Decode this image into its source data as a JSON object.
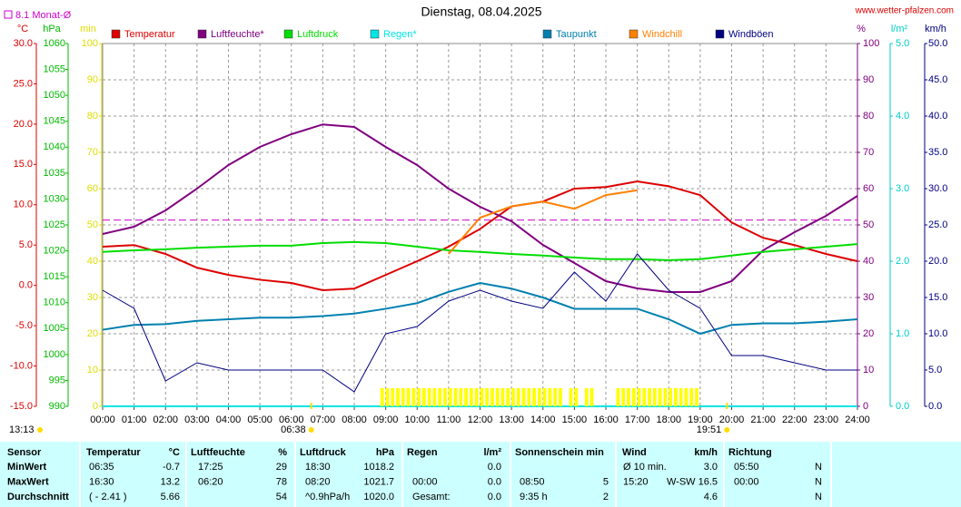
{
  "chart_data": {
    "type": "line",
    "title": "Dienstag, 08.04.2025",
    "site": "www.wetter-pfalzen.com",
    "month_avg": {
      "label": "8.1 Monat-Ø",
      "value": 8.1,
      "axis": "temp",
      "color": "#cc00cc"
    },
    "grid": true,
    "xlim": [
      0,
      24
    ],
    "xticks": [
      {
        "value": 0,
        "label": "00:00"
      },
      {
        "value": 1,
        "label": "01:00"
      },
      {
        "value": 2,
        "label": "02:00"
      },
      {
        "value": 3,
        "label": "03:00"
      },
      {
        "value": 4,
        "label": "04:00"
      },
      {
        "value": 5,
        "label": "05:00"
      },
      {
        "value": 6,
        "label": "06:00"
      },
      {
        "value": 7,
        "label": "07:00"
      },
      {
        "value": 8,
        "label": "08:00"
      },
      {
        "value": 9,
        "label": "09:00"
      },
      {
        "value": 10,
        "label": "10:00"
      },
      {
        "value": 11,
        "label": "11:00"
      },
      {
        "value": 12,
        "label": "12:00"
      },
      {
        "value": 13,
        "label": "13:00"
      },
      {
        "value": 14,
        "label": "14:00"
      },
      {
        "value": 15,
        "label": "15:00"
      },
      {
        "value": 16,
        "label": "16:00"
      },
      {
        "value": 17,
        "label": "17:00"
      },
      {
        "value": 18,
        "label": "18:00"
      },
      {
        "value": 19,
        "label": "19:00"
      },
      {
        "value": 20,
        "label": "20:00"
      },
      {
        "value": 21,
        "label": "21:00"
      },
      {
        "value": 22,
        "label": "22:00"
      },
      {
        "value": 23,
        "label": "23:00"
      },
      {
        "value": 24,
        "label": "24:00"
      }
    ],
    "axes": {
      "temp": {
        "label": "°C",
        "color": "#dd0000",
        "side": "left",
        "pos": 0,
        "lim": [
          -15,
          30
        ],
        "ticks": [
          {
            "value": 30,
            "label": "30.0"
          },
          {
            "value": 25,
            "label": "25.0"
          },
          {
            "value": 20,
            "label": "20.0"
          },
          {
            "value": 15,
            "label": "15.0"
          },
          {
            "value": 10,
            "label": "10.0"
          },
          {
            "value": 5,
            "label": "5.0"
          },
          {
            "value": 0,
            "label": "0.0"
          },
          {
            "value": -5,
            "label": "-5.0"
          },
          {
            "value": -10,
            "label": "-10.0"
          },
          {
            "value": -15,
            "label": "-15.0"
          }
        ]
      },
      "hpa": {
        "label": "hPa",
        "color": "#00bb00",
        "side": "left",
        "pos": 1,
        "lim": [
          990,
          1060
        ],
        "ticks": [
          1060,
          1055,
          1050,
          1045,
          1040,
          1035,
          1030,
          1025,
          1020,
          1015,
          1010,
          1005,
          1000,
          995,
          990
        ]
      },
      "min": {
        "label": "min",
        "color": "#dddd00",
        "side": "left",
        "pos": 2,
        "lim": [
          0,
          100
        ],
        "ticks": [
          100,
          90,
          80,
          70,
          60,
          50,
          40,
          30,
          20,
          10,
          0
        ]
      },
      "pct": {
        "label": "%",
        "color": "#800080",
        "side": "right",
        "pos": 0,
        "lim": [
          0,
          100
        ],
        "ticks": [
          100,
          90,
          80,
          70,
          60,
          50,
          40,
          30,
          20,
          10,
          0
        ]
      },
      "rain": {
        "label": "l/m²",
        "color": "#00cccc",
        "side": "right",
        "pos": 1,
        "lim": [
          0,
          5
        ],
        "ticks": [
          {
            "value": 5,
            "label": "5.0"
          },
          {
            "value": 4,
            "label": "4.0"
          },
          {
            "value": 3,
            "label": "3.0"
          },
          {
            "value": 2,
            "label": "2.0"
          },
          {
            "value": 1,
            "label": "1.0"
          },
          {
            "value": 0,
            "label": "0.0"
          }
        ]
      },
      "kmh": {
        "label": "km/h",
        "color": "#000080",
        "side": "right",
        "pos": 2,
        "lim": [
          0,
          50
        ],
        "ticks": [
          {
            "value": 50,
            "label": "50.0"
          },
          {
            "value": 45,
            "label": "45.0"
          },
          {
            "value": 40,
            "label": "40.0"
          },
          {
            "value": 35,
            "label": "35.0"
          },
          {
            "value": 30,
            "label": "30.0"
          },
          {
            "value": 25,
            "label": "25.0"
          },
          {
            "value": 20,
            "label": "20.0"
          },
          {
            "value": 15,
            "label": "15.0"
          },
          {
            "value": 10,
            "label": "10.0"
          },
          {
            "value": 5,
            "label": "5.0"
          },
          {
            "value": 0,
            "label": "0.0"
          }
        ]
      }
    },
    "x": [
      "00:00",
      "01:00",
      "02:00",
      "03:00",
      "04:00",
      "05:00",
      "06:00",
      "07:00",
      "08:00",
      "09:00",
      "10:00",
      "11:00",
      "12:00",
      "13:00",
      "14:00",
      "15:00",
      "16:00",
      "17:00",
      "18:00",
      "19:00",
      "20:00",
      "21:00",
      "22:00",
      "23:00",
      "24:00"
    ],
    "series": [
      {
        "name": "Temperatur",
        "color": "#dd0000",
        "axis": "temp",
        "values": [
          4.8,
          5.0,
          3.9,
          2.2,
          1.3,
          0.7,
          0.3,
          -0.6,
          -0.4,
          1.3,
          3.0,
          4.8,
          7.0,
          9.8,
          10.4,
          12.0,
          12.2,
          12.9,
          12.3,
          11.2,
          7.8,
          5.9,
          5.0,
          3.9,
          3.0
        ]
      },
      {
        "name": "Luftfeuchte*",
        "color": "#800080",
        "axis": "pct",
        "values": [
          47.5,
          49.5,
          54,
          60,
          66.5,
          71.5,
          75,
          77.7,
          77,
          71.5,
          66.5,
          60,
          55,
          51,
          44.5,
          39.5,
          34.5,
          32.5,
          31.5,
          31.5,
          34.5,
          43,
          48,
          52.5,
          58
        ]
      },
      {
        "name": "Luftdruck",
        "color": "#00dd00",
        "axis": "hpa",
        "values": [
          1019.8,
          1020.1,
          1020.3,
          1020.6,
          1020.8,
          1021.0,
          1021.0,
          1021.5,
          1021.7,
          1021.5,
          1020.8,
          1020.1,
          1019.8,
          1019.4,
          1019.1,
          1018.7,
          1018.4,
          1018.4,
          1018.2,
          1018.4,
          1019.1,
          1019.8,
          1020.3,
          1020.8,
          1021.3
        ]
      },
      {
        "name": "Regen*",
        "color": "#00e5e5",
        "axis": "rain",
        "values": [
          0,
          0,
          0,
          0,
          0,
          0,
          0,
          0,
          0,
          0,
          0,
          0,
          0,
          0,
          0,
          0,
          0,
          0,
          0,
          0,
          0,
          0,
          0,
          0,
          0
        ]
      },
      {
        "name": "Sonnenschein",
        "color": "#ffff00",
        "legend_color": "#dddd00",
        "axis": "min",
        "periods": [
          {
            "from": "08:50",
            "to": "14:40",
            "value": 5
          },
          {
            "from": "14:50",
            "to": "15:10",
            "value": 5
          },
          {
            "from": "15:20",
            "to": "15:40",
            "value": 5
          },
          {
            "from": "16:20",
            "to": "19:00",
            "value": 5
          }
        ]
      },
      {
        "name": "Taupunkt",
        "color": "#0080b0",
        "axis": "temp",
        "values": [
          -5.5,
          -4.9,
          -4.8,
          -4.4,
          -4.2,
          -4.0,
          -4.0,
          -3.8,
          -3.5,
          -2.9,
          -2.2,
          -0.8,
          0.3,
          -0.4,
          -1.5,
          -2.9,
          -2.9,
          -2.9,
          -4.2,
          -6.0,
          -4.9,
          -4.7,
          -4.7,
          -4.5,
          -4.2
        ]
      },
      {
        "name": "Windchill",
        "color": "#ff8000",
        "axis": "temp",
        "values": [
          null,
          null,
          null,
          null,
          null,
          null,
          null,
          null,
          null,
          null,
          null,
          3.9,
          8.4,
          9.8,
          10.4,
          9.5,
          11.2,
          11.8,
          null,
          null,
          null,
          null,
          null,
          null,
          null
        ]
      },
      {
        "name": "Windböen",
        "color": "#000080",
        "axis": "kmh",
        "values": [
          16,
          13.5,
          3.5,
          6,
          5,
          5,
          5,
          5,
          2,
          10,
          11,
          14.5,
          16,
          14.5,
          13.5,
          18.5,
          14.5,
          21,
          16,
          13.5,
          7,
          7,
          6,
          5,
          5
        ]
      }
    ],
    "sun": {
      "day_length": "13:13",
      "sunrise": "06:38",
      "sunset": "19:51"
    }
  },
  "table": {
    "header": [
      "Sensor",
      "Temperatur",
      "°C",
      "Luftfeuchte",
      "%",
      "Luftdruck",
      "hPa",
      "Regen",
      "l/m²",
      "Sonnenschein min",
      "Wind",
      "km/h",
      "Richtung"
    ],
    "rows": [
      {
        "label": "MinWert",
        "cells": [
          "06:35",
          "-0.7",
          "17:25",
          "29",
          "18:30",
          "1018.2",
          null,
          "0.0",
          null,
          null,
          "Ø 10 min.",
          "3.0",
          "05:50",
          "N"
        ]
      },
      {
        "label": "MaxWert",
        "cells": [
          "16:30",
          "13.2",
          "06:20",
          "78",
          "08:20",
          "1021.7",
          "00:00",
          "0.0",
          "08:50",
          "5",
          "15:20",
          "W-SW 16.5",
          "00:00",
          "N"
        ]
      },
      {
        "label": "Durchschnitt",
        "cells": [
          "( - 2.41 )",
          "5.66",
          null,
          "54",
          "^0.9hPa/h",
          "1020.0",
          "Gesamt:",
          "0.0",
          "9:35 h",
          "2",
          null,
          "4.6",
          null,
          "N"
        ]
      }
    ]
  }
}
